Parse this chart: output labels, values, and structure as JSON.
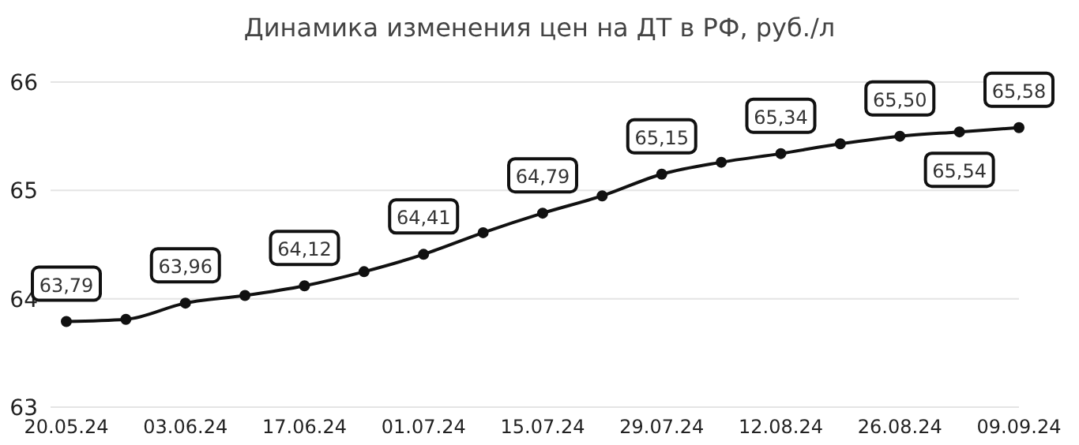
{
  "chart_data": {
    "type": "line",
    "title": "Динамика изменения цен на ДТ в РФ, руб./л",
    "categories": [
      "20.05.24",
      null,
      "03.06.24",
      null,
      "17.06.24",
      null,
      "01.07.24",
      null,
      "15.07.24",
      null,
      "29.07.24",
      null,
      "12.08.24",
      null,
      "26.08.24",
      null,
      "09.09.24"
    ],
    "series": [
      {
        "color": "#111111",
        "values": [
          63.79,
          63.81,
          63.96,
          64.03,
          64.12,
          64.25,
          64.41,
          64.61,
          64.79,
          64.95,
          65.15,
          65.26,
          65.34,
          65.43,
          65.5,
          65.54,
          65.58
        ],
        "value_labels": [
          "63,79",
          null,
          "63,96",
          null,
          "64,12",
          null,
          "64,41",
          null,
          "64,79",
          null,
          "65,15",
          null,
          "65,34",
          null,
          "65,50",
          "65,54",
          "65,58"
        ]
      }
    ],
    "ylim": [
      63,
      66
    ],
    "yticks": [
      63,
      64,
      65,
      66
    ],
    "grid": "y",
    "marker": "circle",
    "line_style": "solid"
  }
}
